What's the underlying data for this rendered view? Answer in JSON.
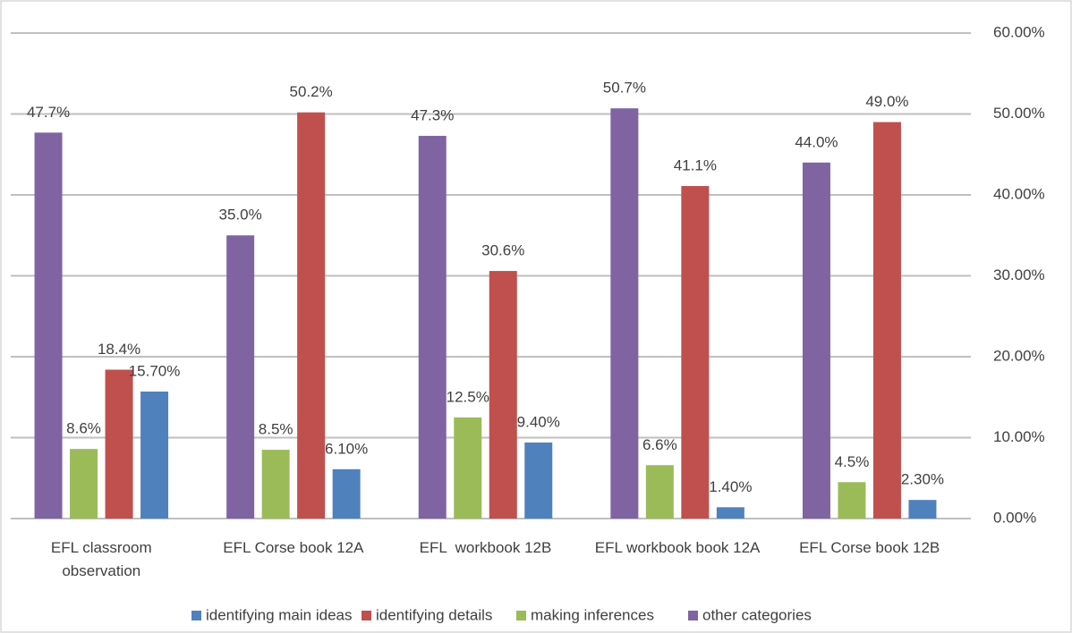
{
  "chart_data": {
    "type": "bar",
    "categories": [
      "EFL classroom observation",
      "EFL Corse book 12A",
      "EFL  workbook 12B",
      "EFL workbook book 12A",
      "EFL Corse book 12B"
    ],
    "series": [
      {
        "name": "identifying main ideas",
        "color": "#4f81bd",
        "values": [
          15.7,
          6.1,
          9.4,
          1.4,
          2.3
        ],
        "value_labels": [
          "15.70%",
          "6.10%",
          "9.40%",
          "1.40%",
          "2.30%"
        ]
      },
      {
        "name": "identifying details",
        "color": "#c0504d",
        "values": [
          18.4,
          50.2,
          30.6,
          41.1,
          49.0
        ],
        "value_labels": [
          "18.4%",
          "50.2%",
          "30.6%",
          "41.1%",
          "49.0%"
        ]
      },
      {
        "name": "making inferences",
        "color": "#9bbb59",
        "values": [
          8.6,
          8.5,
          12.5,
          6.6,
          4.5
        ],
        "value_labels": [
          "8.6%",
          "8.5%",
          "12.5%",
          "6.6%",
          "4.5%"
        ]
      },
      {
        "name": "other categories",
        "color": "#8064a2",
        "values": [
          47.7,
          35.0,
          47.3,
          50.7,
          44.0
        ],
        "value_labels": [
          "47.7%",
          "35.0%",
          "47.3%",
          "50.7%",
          "44.0%"
        ]
      }
    ],
    "ylim": [
      0,
      60
    ],
    "yticks": [
      {
        "value": 0,
        "label": "0.00%"
      },
      {
        "value": 10,
        "label": "10.00%"
      },
      {
        "value": 20,
        "label": "20.00%"
      },
      {
        "value": 30,
        "label": "30.00%"
      },
      {
        "value": 40,
        "label": "40.00%"
      },
      {
        "value": 50,
        "label": "50.00%"
      },
      {
        "value": 60,
        "label": "60.00%"
      }
    ],
    "grid": true,
    "legend": "bottom"
  }
}
